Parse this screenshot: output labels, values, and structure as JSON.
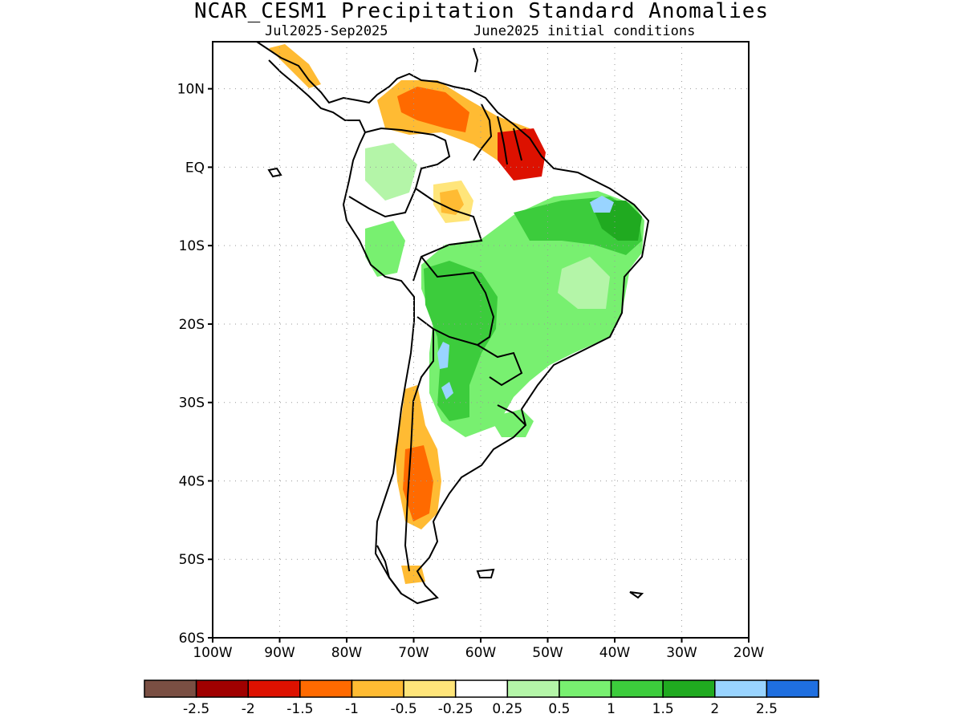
{
  "title": "NCAR_CESM1 Precipitation Standard Anomalies",
  "subtitle_period": "Jul2025-Sep2025",
  "subtitle_init": "June2025 initial conditions",
  "map": {
    "lat_ticks": [
      "10N",
      "EQ",
      "10S",
      "20S",
      "30S",
      "40S",
      "50S",
      "60S"
    ],
    "lon_ticks": [
      "100W",
      "90W",
      "80W",
      "70W",
      "60W",
      "50W",
      "40W",
      "30W",
      "20W"
    ],
    "lat_range": [
      -60,
      16
    ],
    "lon_range": [
      -100,
      -20
    ],
    "grid": "dotted"
  },
  "colorbar": {
    "labels": [
      "-2.5",
      "-2",
      "-1.5",
      "-1",
      "-0.5",
      "-0.25",
      "0.25",
      "0.5",
      "1",
      "1.5",
      "2",
      "2.5"
    ],
    "colors": [
      "#7a4f43",
      "#a00000",
      "#dd1100",
      "#ff6a00",
      "#ffbb33",
      "#ffe57a",
      "#ffffff",
      "#b4f5a8",
      "#78f070",
      "#3ccc3c",
      "#20aa20",
      "#99d4ff",
      "#1f6fe0"
    ]
  },
  "colors": {
    "dry_strong": "#a00000",
    "dry_moderate": "#ff6a00",
    "dry_light": "#ffbb33",
    "dry_weak": "#ffe57a",
    "wet_weak": "#b4f5a8",
    "wet_light": "#78f070",
    "wet_moderate": "#3ccc3c",
    "wet_strong": "#20aa20",
    "wet_very": "#99d4ff"
  }
}
